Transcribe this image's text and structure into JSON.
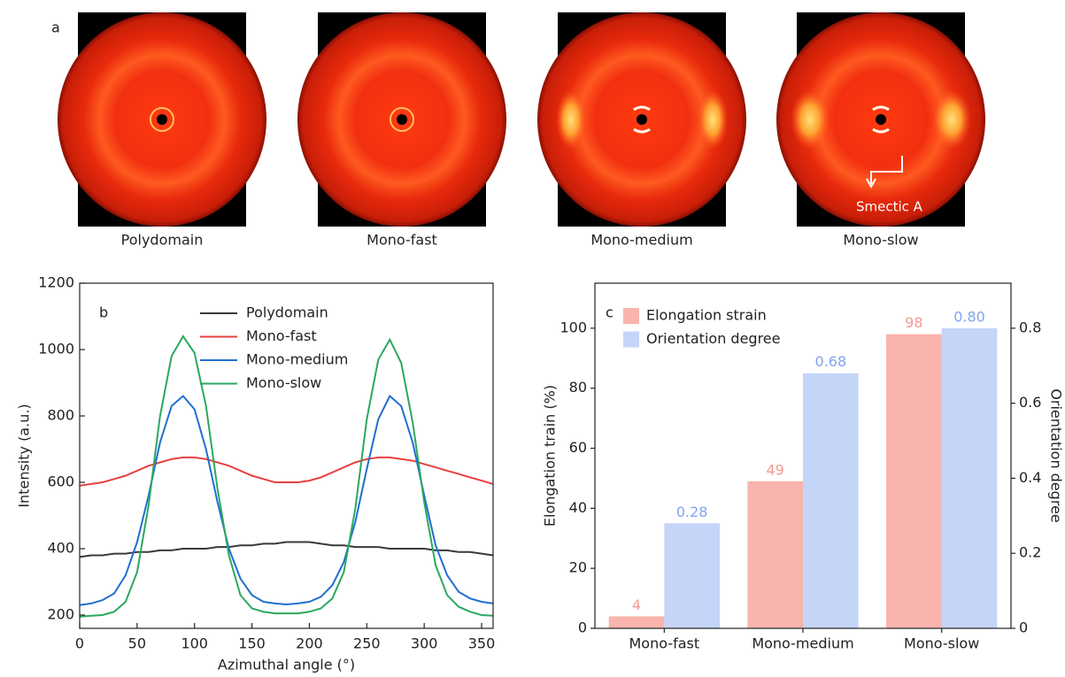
{
  "panel_a": {
    "panel_label": "a",
    "labels": [
      "Polydomain",
      "Mono-fast",
      "Mono-medium",
      "Mono-slow"
    ],
    "annotation": "Smectic A"
  },
  "chart_data": [
    {
      "type": "line",
      "panel_label": "b",
      "xlabel": "Azimuthal angle (°)",
      "ylabel": "Intensity (a.u.)",
      "x": [
        0,
        10,
        20,
        30,
        40,
        50,
        60,
        70,
        80,
        90,
        100,
        110,
        120,
        130,
        140,
        150,
        160,
        170,
        180,
        190,
        200,
        210,
        220,
        230,
        240,
        250,
        260,
        270,
        280,
        290,
        300,
        310,
        320,
        330,
        340,
        350,
        360
      ],
      "series": [
        {
          "name": "Polydomain",
          "color": "#3a3a3a",
          "values": [
            375,
            380,
            380,
            385,
            385,
            390,
            390,
            395,
            395,
            400,
            400,
            400,
            405,
            405,
            410,
            410,
            415,
            415,
            420,
            420,
            420,
            415,
            410,
            410,
            405,
            405,
            405,
            400,
            400,
            400,
            400,
            395,
            395,
            390,
            390,
            385,
            380
          ]
        },
        {
          "name": "Mono-fast",
          "color": "#e8403f",
          "values": [
            590,
            595,
            600,
            610,
            620,
            635,
            650,
            660,
            670,
            675,
            675,
            670,
            660,
            650,
            635,
            620,
            610,
            600,
            600,
            600,
            605,
            615,
            630,
            645,
            660,
            670,
            675,
            675,
            670,
            665,
            655,
            645,
            635,
            625,
            615,
            605,
            595
          ]
        },
        {
          "name": "Mono-medium",
          "color": "#1f6fd0",
          "values": [
            230,
            235,
            245,
            265,
            320,
            420,
            560,
            720,
            830,
            860,
            820,
            700,
            540,
            400,
            310,
            260,
            240,
            235,
            232,
            235,
            240,
            255,
            290,
            360,
            480,
            640,
            790,
            860,
            830,
            720,
            560,
            410,
            320,
            270,
            250,
            240,
            235
          ]
        },
        {
          "name": "Mono-slow",
          "color": "#2aa860",
          "values": [
            195,
            198,
            200,
            210,
            240,
            330,
            530,
            800,
            980,
            1040,
            990,
            830,
            580,
            380,
            260,
            220,
            210,
            205,
            205,
            205,
            210,
            220,
            250,
            330,
            520,
            790,
            970,
            1030,
            960,
            780,
            540,
            350,
            260,
            225,
            210,
            200,
            198
          ]
        }
      ],
      "xlim": [
        0,
        360
      ],
      "xticks": [
        0,
        50,
        100,
        150,
        200,
        250,
        300,
        350
      ],
      "ylim": [
        160,
        1200
      ],
      "yticks": [
        200,
        400,
        600,
        800,
        1000,
        1200
      ]
    },
    {
      "type": "bar",
      "panel_label": "c",
      "ylabel": "Elongation train (%)",
      "y2label": "Orientation degree",
      "categories": [
        "Mono-fast",
        "Mono-medium",
        "Mono-slow"
      ],
      "series": [
        {
          "name": "Elongation strain",
          "color": "#f8b4ad",
          "label_color": "#f29a92",
          "values": [
            4,
            49,
            98
          ]
        },
        {
          "name": "Orientation degree",
          "color": "#c4d5f8",
          "label_color": "#7fa4ee",
          "axis": "y2",
          "values": [
            0.28,
            0.68,
            0.8
          ],
          "value_labels": [
            "0.28",
            "0.68",
            "0.80"
          ]
        }
      ],
      "ylim": [
        0,
        115
      ],
      "yticks": [
        0,
        20,
        40,
        60,
        80,
        100
      ],
      "y2lim": [
        0,
        0.92
      ],
      "y2ticks": [
        0,
        0.2,
        0.4,
        0.6,
        0.8
      ]
    }
  ]
}
